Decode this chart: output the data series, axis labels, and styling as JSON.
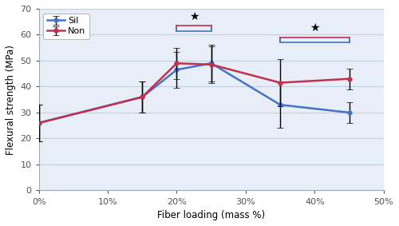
{
  "x": [
    0,
    15,
    20,
    25,
    35,
    45
  ],
  "sil_y": [
    26,
    36,
    46.5,
    49,
    33,
    30
  ],
  "non_y": [
    26,
    36,
    49,
    48.5,
    41.5,
    43
  ],
  "sil_err": [
    7,
    6,
    7,
    7,
    9,
    4
  ],
  "non_err": [
    7,
    6,
    6,
    7,
    9,
    4
  ],
  "sil_color": "#4472c4",
  "non_color": "#c0314e",
  "xlabel": "Fiber loading (mass %)",
  "ylabel": "Flexural strength (MPa)",
  "xlim": [
    0,
    50
  ],
  "ylim": [
    0,
    70
  ],
  "xticks": [
    0,
    10,
    20,
    30,
    40,
    50
  ],
  "yticks": [
    0,
    10,
    20,
    30,
    40,
    50,
    60,
    70
  ],
  "sil_label": "Sil",
  "non_label": "Non",
  "bracket1_x1": 20,
  "bracket1_x2": 25,
  "bracket1_y_non": 63.5,
  "bracket1_y_sil": 61.5,
  "bracket1_tick": 1.2,
  "bracket2_x1": 35,
  "bracket2_x2": 45,
  "bracket2_y_non": 59,
  "bracket2_y_sil": 57,
  "bracket2_tick": 1.2,
  "star1_x": 22.5,
  "star1_y": 64.8,
  "star2_x": 40,
  "star2_y": 60.5,
  "plot_bg": "#e8eef7",
  "grid_color": "#c0cfe0",
  "fig_bg": "#ffffff"
}
